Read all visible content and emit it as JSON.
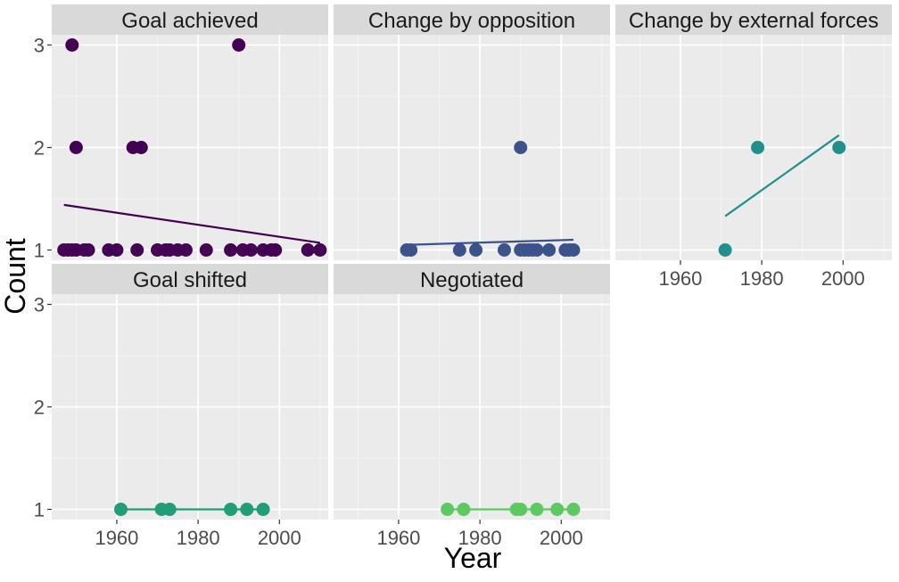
{
  "chart_data": {
    "type": "scatter",
    "xlabel": "Year",
    "ylabel": "Count",
    "xlim": [
      1944,
      2012
    ],
    "ylim": [
      0.9,
      3.1
    ],
    "x_ticks": [
      1960,
      1980,
      2000
    ],
    "y_ticks": [
      1,
      2,
      3
    ],
    "grid": true,
    "trend_line": "linear",
    "facets": [
      {
        "name": "Goal achieved",
        "color": "#440154",
        "x": [
          1947,
          1948,
          1949,
          1950,
          1952,
          1953,
          1958,
          1960,
          1965,
          1970,
          1972,
          1973,
          1975,
          1977,
          1982,
          1988,
          1991,
          1993,
          1996,
          1998,
          1999,
          2007,
          2010,
          1949,
          1950,
          1964,
          1966,
          1990
        ],
        "y": [
          1,
          1,
          1,
          1,
          1,
          1,
          1,
          1,
          1,
          1,
          1,
          1,
          1,
          1,
          1,
          1,
          1,
          1,
          1,
          1,
          1,
          1,
          1,
          3,
          2,
          2,
          2,
          3
        ],
        "trend": {
          "x": [
            1947,
            2010
          ],
          "y": [
            1.44,
            1.07
          ]
        }
      },
      {
        "name": "Change by opposition",
        "color": "#3b528b",
        "x": [
          1962,
          1963,
          1975,
          1979,
          1986,
          1990,
          1991,
          1992,
          1993,
          1994,
          1997,
          2001,
          2002,
          2003,
          1990
        ],
        "y": [
          1,
          1,
          1,
          1,
          1,
          1,
          1,
          1,
          1,
          1,
          1,
          1,
          1,
          1,
          2
        ],
        "trend": {
          "x": [
            1962,
            2003
          ],
          "y": [
            1.05,
            1.1
          ]
        }
      },
      {
        "name": "Change by external forces",
        "color": "#21908c",
        "x": [
          1971,
          1979,
          1999
        ],
        "y": [
          1,
          2,
          2
        ],
        "trend": {
          "x": [
            1971,
            1999
          ],
          "y": [
            1.33,
            2.12
          ]
        }
      },
      {
        "name": "Goal shifted",
        "color": "#1f9e78",
        "x": [
          1961,
          1971,
          1973,
          1988,
          1992,
          1996
        ],
        "y": [
          1,
          1,
          1,
          1,
          1,
          1
        ],
        "trend": {
          "x": [
            1961,
            1996
          ],
          "y": [
            1,
            1
          ]
        }
      },
      {
        "name": "Negotiated",
        "color": "#5ec962",
        "x": [
          1972,
          1976,
          1989,
          1990,
          1994,
          1999,
          2003
        ],
        "y": [
          1,
          1,
          1,
          1,
          1,
          1,
          1
        ],
        "trend": {
          "x": [
            1972,
            2003
          ],
          "y": [
            1,
            1
          ]
        }
      }
    ]
  }
}
